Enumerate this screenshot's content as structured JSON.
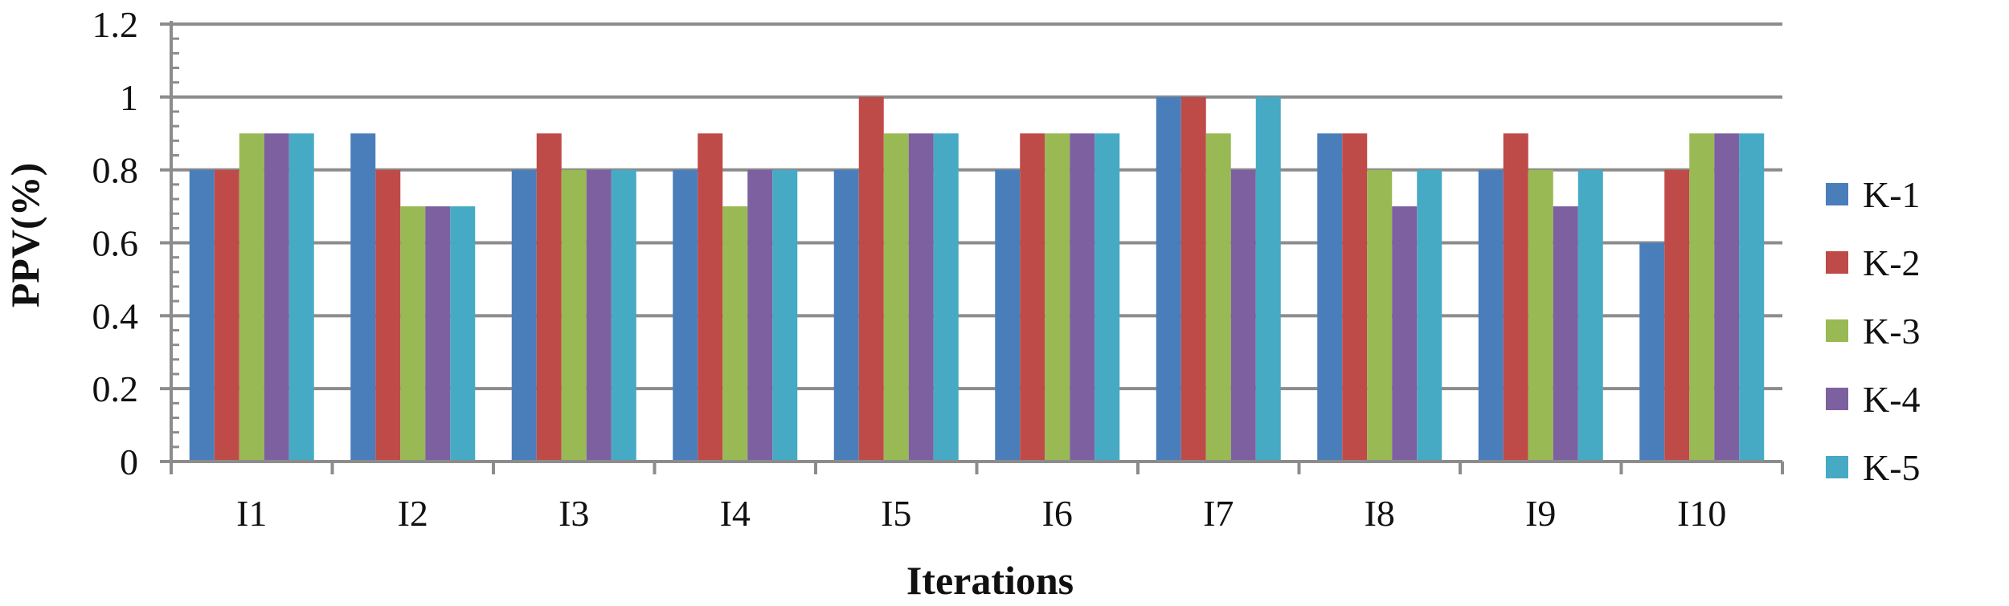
{
  "chart_data": {
    "type": "bar",
    "title": "",
    "xlabel": "Iterations",
    "ylabel": "PPV(%)",
    "ylim": [
      0,
      1.2
    ],
    "yticks": [
      0,
      0.2,
      0.4,
      0.6,
      0.8,
      1,
      1.2
    ],
    "ytick_labels": [
      "0",
      "0.2",
      "0.4",
      "0.6",
      "0.8",
      "1",
      "1.2"
    ],
    "grid": true,
    "legend_position": "right",
    "categories": [
      "I1",
      "I2",
      "I3",
      "I4",
      "I5",
      "I6",
      "I7",
      "I8",
      "I9",
      "I10"
    ],
    "series": [
      {
        "name": "K-1",
        "color": "#4a7ebb",
        "values": [
          0.8,
          0.9,
          0.8,
          0.8,
          0.8,
          0.8,
          1.0,
          0.9,
          0.8,
          0.6
        ]
      },
      {
        "name": "K-2",
        "color": "#be4b48",
        "values": [
          0.8,
          0.8,
          0.9,
          0.9,
          1.0,
          0.9,
          1.0,
          0.9,
          0.9,
          0.8
        ]
      },
      {
        "name": "K-3",
        "color": "#98b954",
        "values": [
          0.9,
          0.7,
          0.8,
          0.7,
          0.9,
          0.9,
          0.9,
          0.8,
          0.8,
          0.9
        ]
      },
      {
        "name": "K-4",
        "color": "#7d60a0",
        "values": [
          0.9,
          0.7,
          0.8,
          0.8,
          0.9,
          0.9,
          0.8,
          0.7,
          0.7,
          0.9
        ]
      },
      {
        "name": "K-5",
        "color": "#46aac5",
        "values": [
          0.9,
          0.7,
          0.8,
          0.8,
          0.9,
          0.9,
          1.0,
          0.8,
          0.8,
          0.9
        ]
      }
    ]
  }
}
